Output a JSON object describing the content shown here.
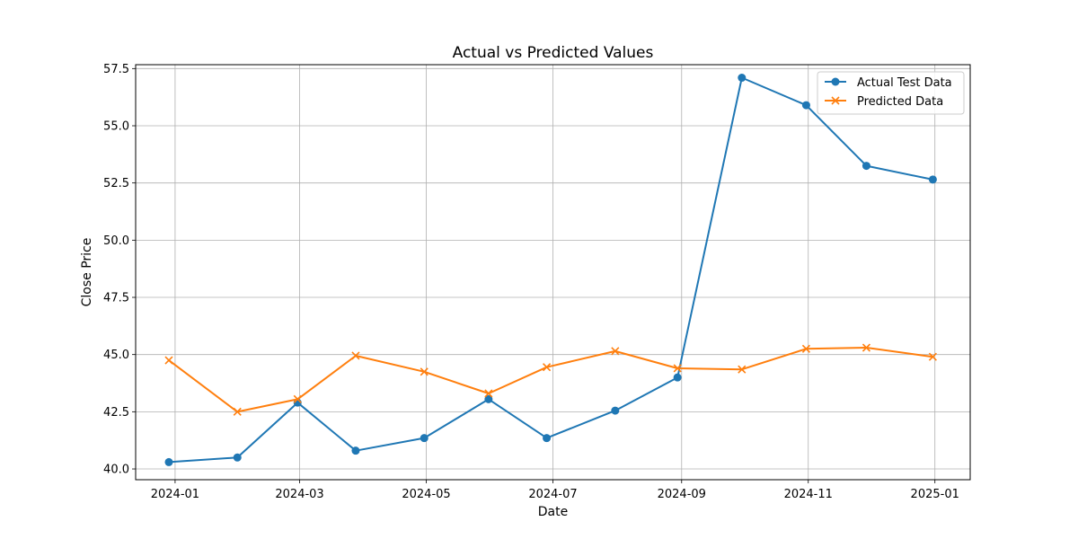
{
  "chart_data": {
    "type": "line",
    "title": "Actual vs Predicted Values",
    "xlabel": "Date",
    "ylabel": "Close Price",
    "x_is_date": true,
    "xlim": [
      "2023-12-13",
      "2025-01-18"
    ],
    "ylim": [
      39.53,
      57.67
    ],
    "x_ticks": [
      {
        "value": "2024-01-01",
        "label": "2024-01"
      },
      {
        "value": "2024-03-01",
        "label": "2024-03"
      },
      {
        "value": "2024-05-01",
        "label": "2024-05"
      },
      {
        "value": "2024-07-01",
        "label": "2024-07"
      },
      {
        "value": "2024-09-01",
        "label": "2024-09"
      },
      {
        "value": "2024-11-01",
        "label": "2024-11"
      },
      {
        "value": "2025-01-01",
        "label": "2025-01"
      }
    ],
    "y_ticks": [
      {
        "value": 40.0,
        "label": "40.0"
      },
      {
        "value": 42.5,
        "label": "42.5"
      },
      {
        "value": 45.0,
        "label": "45.0"
      },
      {
        "value": 47.5,
        "label": "47.5"
      },
      {
        "value": 50.0,
        "label": "50.0"
      },
      {
        "value": 52.5,
        "label": "52.5"
      },
      {
        "value": 55.0,
        "label": "55.0"
      },
      {
        "value": 57.5,
        "label": "57.5"
      }
    ],
    "grid": true,
    "legend_position": "top-right",
    "x": [
      "2023-12-29",
      "2024-01-31",
      "2024-02-29",
      "2024-03-28",
      "2024-04-30",
      "2024-05-31",
      "2024-06-28",
      "2024-07-31",
      "2024-08-30",
      "2024-09-30",
      "2024-10-31",
      "2024-11-29",
      "2024-12-31"
    ],
    "series": [
      {
        "name": "Actual Test Data",
        "marker": "circle",
        "color": "#1f77b4",
        "values": [
          40.3,
          40.5,
          42.9,
          40.8,
          41.35,
          43.05,
          41.35,
          42.55,
          44.0,
          57.1,
          55.9,
          53.25,
          52.65
        ]
      },
      {
        "name": "Predicted Data",
        "marker": "x",
        "color": "#ff7f0e",
        "values": [
          44.75,
          42.5,
          43.05,
          44.95,
          44.25,
          43.3,
          44.45,
          45.15,
          44.4,
          44.35,
          45.25,
          45.3,
          44.9
        ]
      }
    ]
  }
}
